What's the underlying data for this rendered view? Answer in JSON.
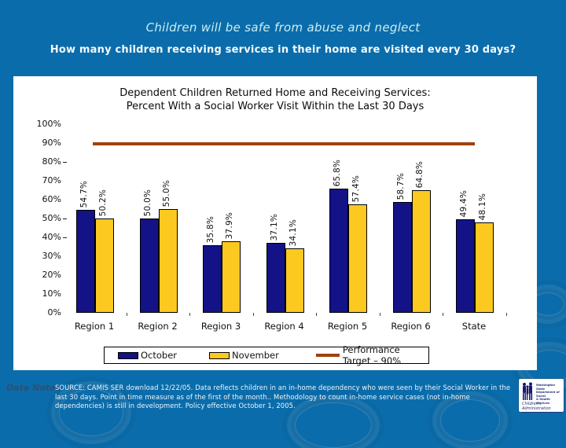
{
  "slide": {
    "title": "Children will be safe from abuse and neglect",
    "subtitle": "How many children receiving services in their home are visited every 30 days?"
  },
  "chart_data": {
    "type": "bar",
    "title_line1": "Dependent Children Returned Home and Receiving Services:",
    "title_line2": "Percent With a Social Worker Visit Within the Last 30 Days",
    "categories": [
      "Region 1",
      "Region 2",
      "Region 3",
      "Region 4",
      "Region 5",
      "Region 6",
      "State"
    ],
    "series": [
      {
        "name": "October",
        "color": "#131287",
        "values": [
          54.7,
          50.0,
          35.8,
          37.1,
          65.8,
          58.7,
          49.4
        ]
      },
      {
        "name": "November",
        "color": "#FCC920",
        "values": [
          50.2,
          55.0,
          37.9,
          34.1,
          57.4,
          64.8,
          48.1
        ]
      }
    ],
    "target": {
      "label": "Performance Target – 90%",
      "value": 90,
      "color": "#A0410F"
    },
    "y_axis": {
      "min": 0,
      "max": 100,
      "tick_step": 10,
      "ticks": [
        "100%",
        "90%",
        "80%",
        "70%",
        "60%",
        "50%",
        "40%",
        "30%",
        "20%",
        "10%",
        "0%"
      ],
      "dash_marks_at": [
        80,
        50,
        40
      ]
    },
    "data_label_format": "percent_one_decimal",
    "legend_position": "bottom",
    "grid": false
  },
  "notes": {
    "label": "Data Notes",
    "text": "SOURCE: CAMIS SER download 12/22/05.  Data reflects children in an in-home dependency who were seen by their Social Worker in the last 30 days. Point in time measure as of the first of the month.. Methodology to count in-home service cases (not in-home dependencies) is still in development. Policy effective October 1, 2005."
  },
  "logo": {
    "line1": "Washington State",
    "line2": "Department of Social",
    "line3": "& Health Services",
    "script": "Children's Administration"
  },
  "colors": {
    "background": "#0B6CAB",
    "panel": "#FFFFFF",
    "october_bar": "#131287",
    "november_bar": "#FCC920",
    "target_line": "#A0410F",
    "title_text": "#C9EFF2",
    "subtitle_text": "#F2FBFD"
  }
}
